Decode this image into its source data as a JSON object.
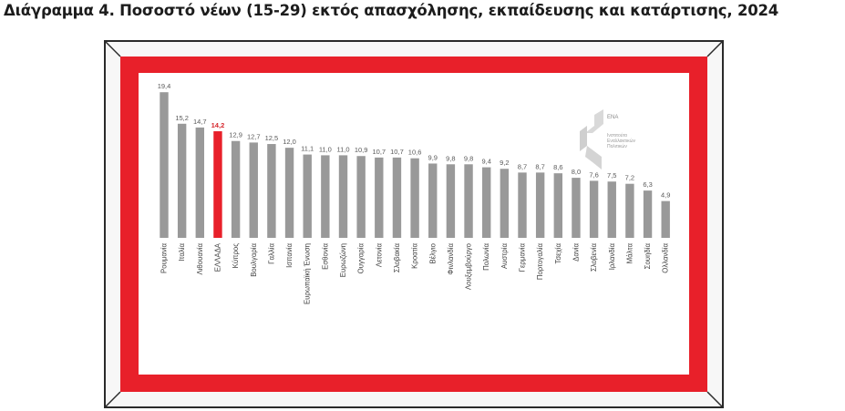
{
  "title": "Διάγραμμα 4. Ποσοστό νέων (15-29) εκτός απασχόλησης, εκπαίδευσης και κατάρτισης, 2024",
  "logo": {
    "name": "ΕΝΑ",
    "subtitle_lines": [
      "Ινστιτούτο",
      "Εναλλακτικών",
      "Πολιτικών"
    ]
  },
  "colors": {
    "bar": "#999999",
    "highlight": "#e8202a",
    "mat": "#e8202a"
  },
  "chart_data": {
    "type": "bar",
    "title": "Ποσοστό νέων (15-29) εκτός απασχόλησης, εκπαίδευσης και κατάρτισης, 2024",
    "xlabel": "",
    "ylabel": "",
    "ylim": [
      0,
      20
    ],
    "grid": false,
    "highlight_category": "ΕΛΛΑΔΑ",
    "categories": [
      "Ρουμανία",
      "Ιταλία",
      "Λιθουανία",
      "ΕΛΛΑΔΑ",
      "Κύπρος",
      "Βουλγαρία",
      "Γαλλία",
      "Ισπανία",
      "Ευρωπαϊκή Ένωση",
      "Εσθονία",
      "Ευρωζώνη",
      "Ουγγαρία",
      "Λετονία",
      "Σλοβακία",
      "Κροατία",
      "Βέλγιο",
      "Φινλανδία",
      "Λουξεμβούργο",
      "Πολωνία",
      "Αυστρία",
      "Γερμανία",
      "Πορτογαλία",
      "Τσεχία",
      "Δανία",
      "Σλοβενία",
      "Ιρλανδία",
      "Μάλτα",
      "Σουηδία",
      "Ολλανδία"
    ],
    "values": [
      19.4,
      15.2,
      14.7,
      14.2,
      12.9,
      12.7,
      12.5,
      12.0,
      11.1,
      11.0,
      11.0,
      10.9,
      10.7,
      10.7,
      10.6,
      9.9,
      9.8,
      9.8,
      9.4,
      9.2,
      8.7,
      8.7,
      8.6,
      8.0,
      7.6,
      7.5,
      7.2,
      6.3,
      4.9
    ],
    "value_labels": [
      "19,4",
      "15,2",
      "14,7",
      "14,2",
      "12,9",
      "12,7",
      "12,5",
      "12,0",
      "11,1",
      "11,0",
      "11,0",
      "10,9",
      "10,7",
      "10,7",
      "10,6",
      "9,9",
      "9,8",
      "9,8",
      "9,4",
      "9,2",
      "8,7",
      "8,7",
      "8,6",
      "8,0",
      "7,6",
      "7,5",
      "7,2",
      "6,3",
      "4,9"
    ]
  }
}
